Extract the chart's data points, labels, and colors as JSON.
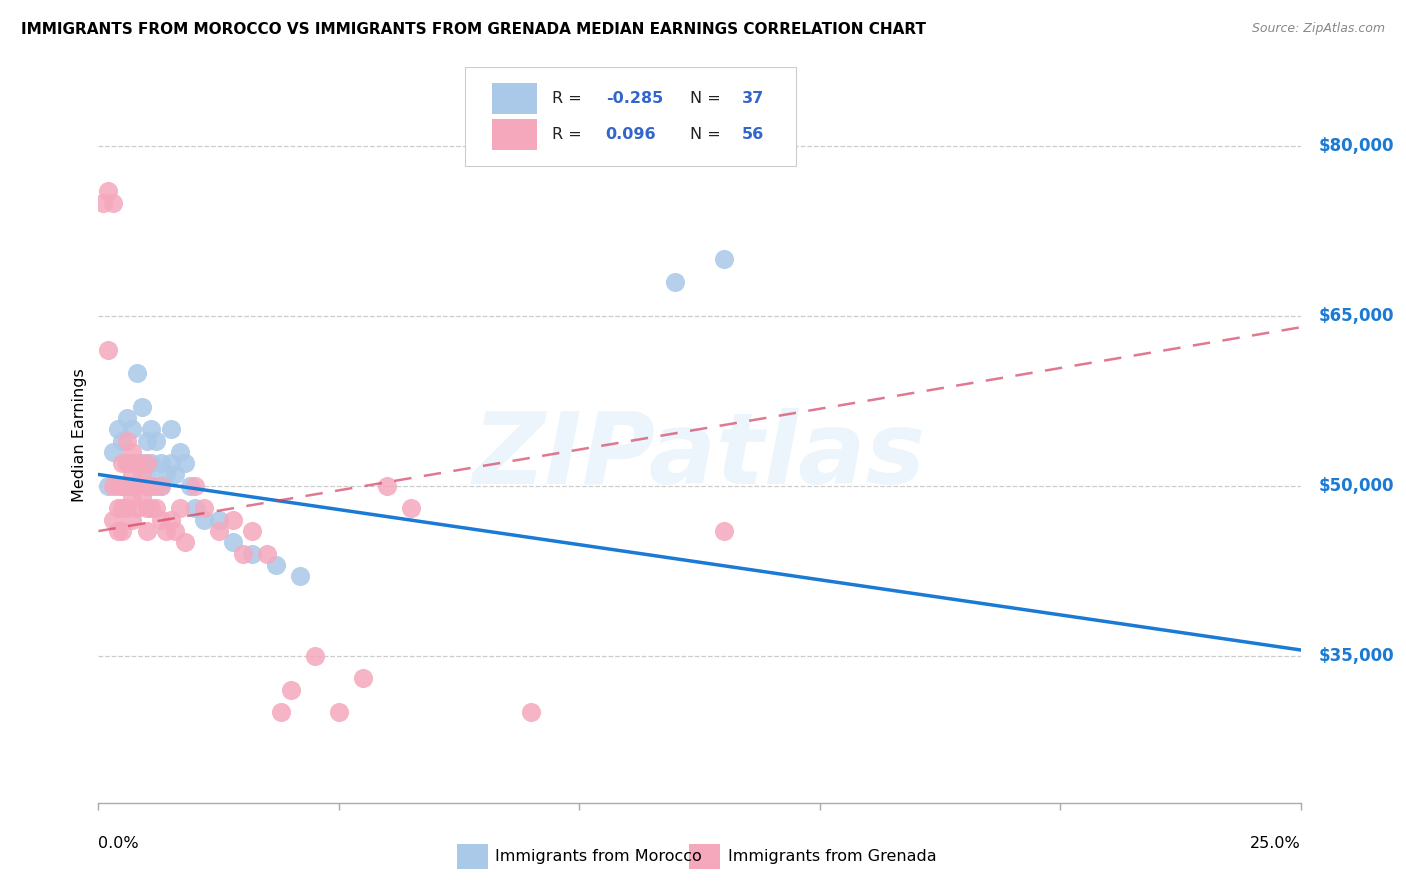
{
  "title": "IMMIGRANTS FROM MOROCCO VS IMMIGRANTS FROM GRENADA MEDIAN EARNINGS CORRELATION CHART",
  "source": "Source: ZipAtlas.com",
  "ylabel": "Median Earnings",
  "xmin": 0.0,
  "xmax": 0.25,
  "ymin": 22000,
  "ymax": 87000,
  "yticks": [
    35000,
    50000,
    65000,
    80000
  ],
  "ytick_labels": [
    "$35,000",
    "$50,000",
    "$65,000",
    "$80,000"
  ],
  "watermark": "ZIPatlas",
  "color_morocco": "#aac8e8",
  "color_grenada": "#f5a8bc",
  "trendline_morocco_color": "#1a7ad4",
  "trendline_grenada_color": "#d44060",
  "legend_text_color": "#3366cc",
  "morocco_trend_y0": 51000,
  "morocco_trend_y1": 35500,
  "grenada_trend_y0": 46000,
  "grenada_trend_y1": 64000,
  "morocco_x": [
    0.002,
    0.003,
    0.004,
    0.005,
    0.005,
    0.006,
    0.006,
    0.007,
    0.007,
    0.007,
    0.008,
    0.009,
    0.009,
    0.01,
    0.01,
    0.011,
    0.011,
    0.012,
    0.012,
    0.013,
    0.013,
    0.014,
    0.015,
    0.015,
    0.016,
    0.017,
    0.018,
    0.019,
    0.02,
    0.022,
    0.025,
    0.028,
    0.032,
    0.037,
    0.042,
    0.12,
    0.13
  ],
  "morocco_y": [
    50000,
    53000,
    55000,
    54000,
    50000,
    56000,
    52000,
    55000,
    52000,
    50000,
    60000,
    57000,
    52000,
    54000,
    51000,
    55000,
    52000,
    54000,
    50000,
    52000,
    50000,
    51000,
    55000,
    52000,
    51000,
    53000,
    52000,
    50000,
    48000,
    47000,
    47000,
    45000,
    44000,
    43000,
    42000,
    68000,
    70000
  ],
  "grenada_x": [
    0.001,
    0.002,
    0.002,
    0.003,
    0.003,
    0.003,
    0.004,
    0.004,
    0.004,
    0.005,
    0.005,
    0.005,
    0.005,
    0.006,
    0.006,
    0.006,
    0.006,
    0.007,
    0.007,
    0.007,
    0.007,
    0.008,
    0.008,
    0.008,
    0.009,
    0.009,
    0.01,
    0.01,
    0.01,
    0.01,
    0.011,
    0.011,
    0.012,
    0.013,
    0.013,
    0.014,
    0.015,
    0.016,
    0.017,
    0.018,
    0.02,
    0.022,
    0.025,
    0.028,
    0.03,
    0.032,
    0.035,
    0.038,
    0.04,
    0.045,
    0.05,
    0.055,
    0.06,
    0.065,
    0.09,
    0.13
  ],
  "grenada_y": [
    75000,
    76000,
    62000,
    75000,
    50000,
    47000,
    50000,
    48000,
    46000,
    52000,
    50000,
    48000,
    46000,
    54000,
    52000,
    50000,
    48000,
    53000,
    51000,
    49000,
    47000,
    52000,
    50000,
    48000,
    51000,
    49000,
    52000,
    50000,
    48000,
    46000,
    50000,
    48000,
    48000,
    50000,
    47000,
    46000,
    47000,
    46000,
    48000,
    45000,
    50000,
    48000,
    46000,
    47000,
    44000,
    46000,
    44000,
    30000,
    32000,
    35000,
    30000,
    33000,
    50000,
    48000,
    30000,
    46000
  ],
  "bottom_legend_label1": "Immigrants from Morocco",
  "bottom_legend_label2": "Immigrants from Grenada"
}
